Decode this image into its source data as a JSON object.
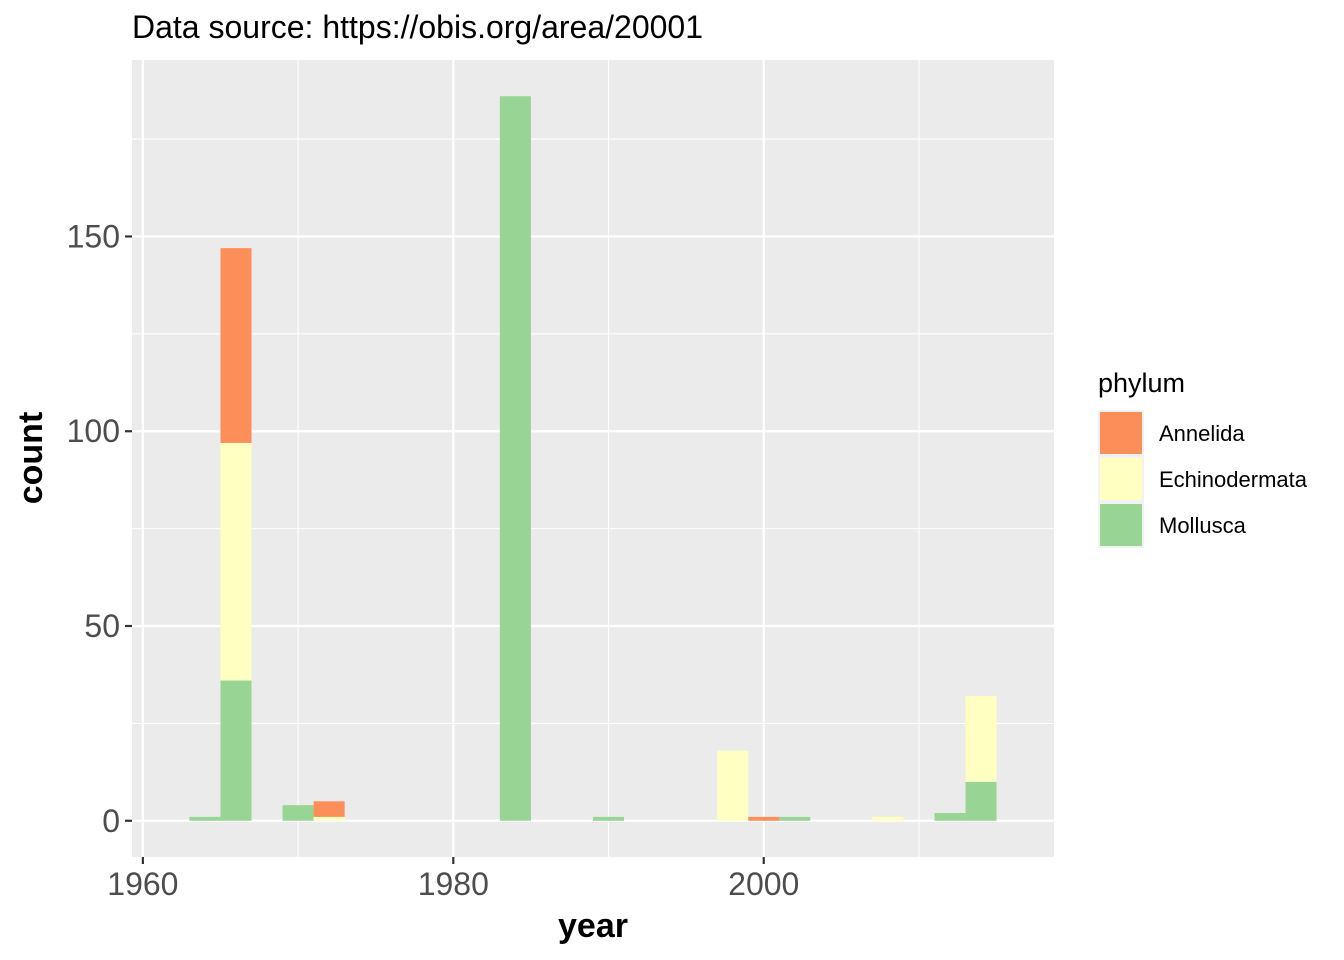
{
  "chart_data": {
    "type": "bar",
    "stacked": true,
    "title": "Data source: https://obis.org/area/20001",
    "xlabel": "year",
    "ylabel": "count",
    "xlim": [
      1959.3,
      2018.7
    ],
    "ylim": [
      -9.3,
      195.3
    ],
    "x_ticks": [
      1960,
      1980,
      2000
    ],
    "y_ticks": [
      0,
      50,
      100,
      150
    ],
    "grid": true,
    "panel_background": "#ebebeb",
    "legend": {
      "title": "phylum",
      "position": "right"
    },
    "bin_width": 2,
    "series": [
      {
        "name": "Mollusca",
        "color": "#98d594",
        "bins": [
          {
            "x0": 1963,
            "x1": 1965,
            "value": 1
          },
          {
            "x0": 1965,
            "x1": 1967,
            "value": 36
          },
          {
            "x0": 1969,
            "x1": 1971,
            "value": 4
          },
          {
            "x0": 1983,
            "x1": 1985,
            "value": 186
          },
          {
            "x0": 1989,
            "x1": 1991,
            "value": 1
          },
          {
            "x0": 2001,
            "x1": 2003,
            "value": 1
          },
          {
            "x0": 2011,
            "x1": 2013,
            "value": 2
          },
          {
            "x0": 2013,
            "x1": 2015,
            "value": 10
          }
        ]
      },
      {
        "name": "Echinodermata",
        "color": "#ffffc1",
        "bins": [
          {
            "x0": 1965,
            "x1": 1967,
            "value": 61
          },
          {
            "x0": 1971,
            "x1": 1973,
            "value": 1
          },
          {
            "x0": 1997,
            "x1": 1999,
            "value": 18
          },
          {
            "x0": 2007,
            "x1": 2009,
            "value": 1
          },
          {
            "x0": 2013,
            "x1": 2015,
            "value": 22
          }
        ]
      },
      {
        "name": "Annelida",
        "color": "#fc8e59",
        "bins": [
          {
            "x0": 1965,
            "x1": 1967,
            "value": 50
          },
          {
            "x0": 1971,
            "x1": 1973,
            "value": 4
          },
          {
            "x0": 1999,
            "x1": 2001,
            "value": 1
          }
        ]
      }
    ],
    "legend_order": [
      "Annelida",
      "Echinodermata",
      "Mollusca"
    ]
  }
}
